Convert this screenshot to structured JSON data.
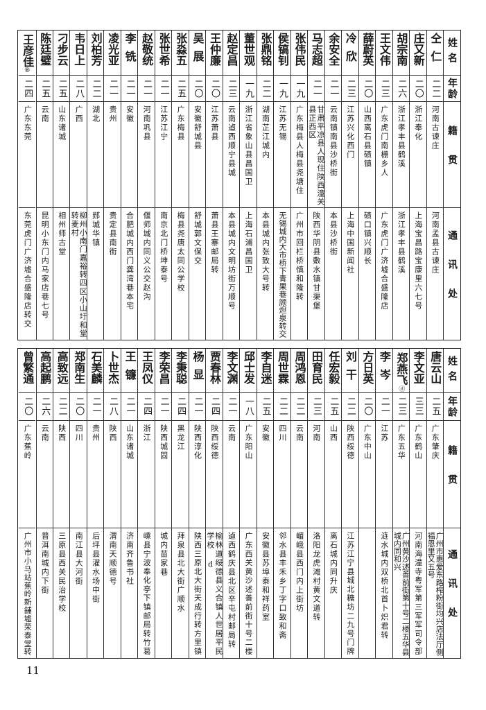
{
  "headers": {
    "name": "姓名",
    "age": "年龄",
    "native": "籍贯",
    "address": "通讯处"
  },
  "tables": [
    {
      "rows": [
        {
          "name": "仝仁",
          "age": "二二",
          "native": "河南古谏庄",
          "address": "河南孟县古谏庄"
        },
        {
          "name": "庄又新",
          "age": "二〇",
          "native": "浙江奉化",
          "address": "上海宝昌路宝康里六七号"
        },
        {
          "name": "胡宗南",
          "age": "二六",
          "native": "浙江孝丰县鹤溪",
          "address": "浙江孝丰县鹤溪"
        },
        {
          "name": "王文伟",
          "age": "二三",
          "native": "广东虎门南栅乡人",
          "address": "广东虎门广济墟合盛隆店"
        },
        {
          "name": "薛蔚英",
          "age": "二〇",
          "native": "山西离石县碛镇",
          "address": "碛口镇兴顺长"
        },
        {
          "name": "冷欣",
          "age": "二三",
          "native": "江苏兴化西门",
          "address": "上海中国新闻社"
        },
        {
          "name": "余安全",
          "age": "二一",
          "native": "云南镇南县沙桥街",
          "address": "本县沙桥街"
        },
        {
          "name": "马志超",
          "age": "二一",
          "native": "甘肃平凉县人现住陕西潼关\n县正西区",
          "address": "陕西华阴县敷水镇甘渠堡"
        },
        {
          "name": "张伟民",
          "age": "一九",
          "native": "广东梅县人梅县尧塘住",
          "address": "广州市回栏桥慎和隆转"
        },
        {
          "name": "侯镐钊",
          "age": "一九",
          "native": "江苏无锡",
          "address": "无锡城内大市桥下青果巷顾炟泉转交"
        },
        {
          "name": "张鼎铭",
          "age": "二二",
          "native": "湖南芷江城内",
          "address": "本县城内张致大号转"
        },
        {
          "name": "董世观",
          "age": "一九",
          "native": "浙江省象山县昌国卫",
          "address": "上海石浦昌国卫"
        },
        {
          "name": "赵定昌",
          "age": "二三",
          "native": "云南逌西顺宁县城",
          "address": "本县城内文明坊街万顺号"
        },
        {
          "name": "王仲廉",
          "age": "二〇",
          "native": "江苏萧县",
          "address": "萧县王寨邮局转"
        },
        {
          "name": "吴展",
          "age": "二〇",
          "native": "安徽舒城县",
          "address": "舒城郭文保交"
        },
        {
          "name": "张淼五",
          "age": "二五",
          "native": "广东梅县",
          "address": "梅县尧唐太同公学校"
        },
        {
          "name": "张世希",
          "age": "二一",
          "native": "江苏江宁",
          "address": "南京北门桥坤泰号"
        },
        {
          "name": "赵敬统",
          "age": "二一",
          "native": "河南巩县",
          "address": "偃师城内同义公交赵沟"
        },
        {
          "name": "李铣",
          "age": "二一",
          "native": "安徽",
          "address": "合肥城内西门龚湾巷本宅"
        },
        {
          "name": "凌光亚",
          "age": "二一",
          "native": "贵州",
          "address": "贵定县南街"
        },
        {
          "name": "刘柏芳",
          "age": "二二",
          "native": "湖北",
          "address": "郧城华镇"
        },
        {
          "name": "韦日上",
          "age": "二八",
          "native": "广西",
          "address": "柳州小南门嘉裕转四区小山圩和堂\n转麦村"
        },
        {
          "name": "刁步云",
          "age": "二五",
          "native": "山东诸城",
          "address": "相州师古堂"
        },
        {
          "name": "陈廷璧",
          "age": "二五",
          "native": "云南",
          "address": "昆明小东门内马家店巷七号"
        },
        {
          "name": "王彦佳",
          "mark": "⑧",
          "age": "二四",
          "native": "广东东莞",
          "address": "东莞虎门广济墟合盛隆店转交"
        }
      ]
    },
    {
      "rows": [
        {
          "name": "唐云山",
          "age": "二五",
          "native": "广东肇庆",
          "address": "广州市惠爱东路榨粉街均兴店法厅侧\n福恩里又五号"
        },
        {
          "name": "李文亚",
          "age": "三三",
          "native": "广东鹤山",
          "address": "河南海潼寺粤军第三军军司令部"
        },
        {
          "name": "郑燕飞",
          "mark": "ⓓ",
          "age": "二三",
          "native": "广东五华",
          "address": "广州黄沙述善前街第十号二楼五华县\n城内同和兴"
        },
        {
          "name": "李岑",
          "age": "二一",
          "native": "江苏",
          "address": "涟水城内双桥北首卜炽君转"
        },
        {
          "name": "方日英",
          "age": "二〇",
          "native": "广东中山",
          "address": ""
        },
        {
          "name": "刘干",
          "age": "二二",
          "native": "陕西绥德",
          "address": "江苏江宁县城北糖坊二九号门牌"
        },
        {
          "name": "任宏毅",
          "age": "二五",
          "native": "山西",
          "address": "离石城内同升庆"
        },
        {
          "name": "田育民",
          "age": "二三",
          "native": "河南",
          "address": "洛阳龙虎滩村黄文道转"
        },
        {
          "name": "周鸿恩",
          "age": "二二",
          "native": "云南",
          "address": "嵋峨县西门内上街坊"
        },
        {
          "name": "周世霖",
          "age": "二二",
          "native": "四川",
          "address": "邻水县丰禾乡丁字口致和斋"
        },
        {
          "name": "李自迷",
          "age": "二五",
          "native": "安徽",
          "address": "安徽县苏埠泰和祥药室"
        },
        {
          "name": "邱士发",
          "age": "一八",
          "native": "广东阳山",
          "address": "广东西关黄沙述善前街十号二楼"
        },
        {
          "name": "李文渊",
          "age": "二一",
          "native": "云南",
          "address": "逌西鹤庆县北区辛屯村邮局转"
        },
        {
          "name": "贾春林",
          "age": "二四",
          "native": "陕西绥德",
          "address": "榆林道绥德县义合镇人世居平民\n学校 d"
        },
        {
          "name": "杨显",
          "age": "二一",
          "native": "陕西淳化",
          "address": "陕西三原北大街天成行转方里镇"
        },
        {
          "name": "李秉聪",
          "age": "二四",
          "native": "黑龙江",
          "address": "拜泉县北大街广顺水"
        },
        {
          "name": "李荣昌",
          "age": "二一",
          "native": "陕西城固",
          "address": "城内苗家巷"
        },
        {
          "name": "王凤仪",
          "age": "二四",
          "native": "浙江",
          "address": "嵊县宁波奉化亭下镇邮局转竹葛"
        },
        {
          "name": "王镰",
          "age": "二一",
          "native": "山东诸城",
          "address": "济南齐鲁书社"
        },
        {
          "name": "卜世杰",
          "age": "二八",
          "native": "陕西",
          "address": "渭南天顺德号"
        },
        {
          "name": "石美麟",
          "age": "二一",
          "native": "贵州",
          "address": "后坪县濯水场中街"
        },
        {
          "name": "郑南生",
          "age": "二〇",
          "native": "四川",
          "address": "南江县大河街"
        },
        {
          "name": "高致远",
          "age": "二二",
          "native": "陕西",
          "address": "三原县西关民治学校"
        },
        {
          "name": "高起鹏",
          "age": "二六",
          "native": "云南",
          "address": "普洱南城内下街"
        },
        {
          "name": "曾繁通",
          "age": "二〇",
          "native": "广东蕉岭",
          "address": "广州市小马站蕉岭新舗墟荣泰堂转"
        }
      ]
    }
  ],
  "page_number": "11"
}
